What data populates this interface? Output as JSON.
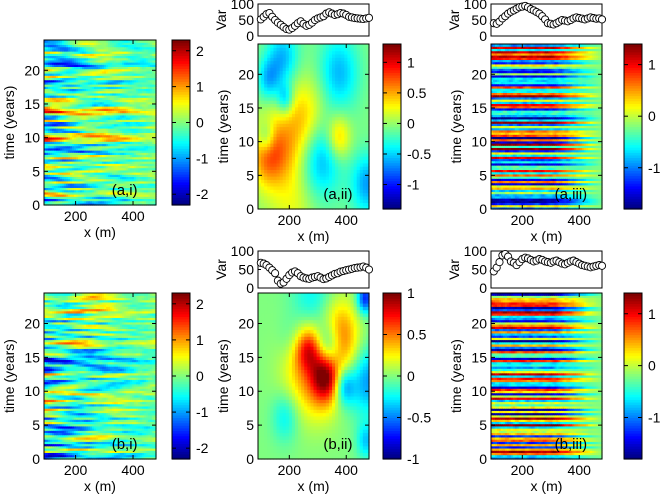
{
  "figure": {
    "description_panels": 6
  },
  "colors": {
    "axis": "#000000",
    "background": "#ffffff",
    "marker_edge": "#000000",
    "marker_fill": "#ffffff",
    "line": "#000000",
    "jet_stops": [
      "#00008f",
      "#0000ff",
      "#00ffff",
      "#80ff80",
      "#ffff00",
      "#ff0000",
      "#800000"
    ]
  },
  "chart_data": [
    {
      "id": "a_i",
      "type": "heatmap",
      "label": "(a,i)",
      "xlabel": "x (m)",
      "ylabel": "time (years)",
      "xlim": [
        90,
        480
      ],
      "ylim": [
        0,
        24.5
      ],
      "xticks": [
        200,
        400
      ],
      "yticks": [
        0,
        5,
        10,
        15,
        20
      ],
      "clim": [
        -2.3,
        2.3
      ],
      "colorbar_ticks": [
        -2,
        -1,
        0,
        1,
        2
      ],
      "pattern": "banded",
      "seed": 11,
      "var_strip": null
    },
    {
      "id": "a_ii",
      "type": "heatmap",
      "label": "(a,ii)",
      "xlabel": "x (m)",
      "ylabel": "time (years)",
      "xlim": [
        90,
        480
      ],
      "ylim": [
        0,
        24.5
      ],
      "xticks": [
        200,
        400
      ],
      "yticks": [
        0,
        5,
        10,
        15,
        20
      ],
      "clim": [
        -1.4,
        1.3
      ],
      "colorbar_ticks": [
        -1,
        -0.5,
        0,
        0.5,
        1
      ],
      "pattern": "smooth",
      "seed": 23,
      "var_strip": {
        "ylabel": "Var",
        "ylim": [
          0,
          100
        ],
        "yticks": [
          0,
          50,
          100
        ],
        "x": [
          100,
          110,
          120,
          130,
          140,
          150,
          160,
          170,
          180,
          190,
          200,
          210,
          220,
          230,
          240,
          250,
          260,
          270,
          280,
          290,
          300,
          310,
          320,
          330,
          340,
          350,
          360,
          370,
          380,
          390,
          400,
          410,
          420,
          430,
          440,
          450,
          460,
          470,
          480
        ],
        "values": [
          52,
          60,
          68,
          72,
          60,
          50,
          42,
          35,
          28,
          22,
          20,
          25,
          32,
          40,
          46,
          38,
          32,
          35,
          42,
          50,
          55,
          58,
          62,
          70,
          74,
          70,
          66,
          68,
          72,
          70,
          66,
          60,
          58,
          56,
          55,
          54,
          53,
          55,
          57
        ]
      }
    },
    {
      "id": "a_iii",
      "type": "heatmap",
      "label": "(a,iii)",
      "xlabel": "x (m)",
      "ylabel": "time (years)",
      "xlim": [
        90,
        480
      ],
      "ylim": [
        0,
        24.5
      ],
      "xticks": [
        200,
        400
      ],
      "yticks": [
        0,
        5,
        10,
        15,
        20
      ],
      "clim": [
        -1.8,
        1.4
      ],
      "colorbar_ticks": [
        -1,
        0,
        1
      ],
      "pattern": "stripes",
      "seed": 37,
      "var_strip": {
        "ylabel": "Var",
        "ylim": [
          0,
          100
        ],
        "yticks": [
          0,
          50,
          100
        ],
        "x": [
          100,
          110,
          120,
          130,
          140,
          150,
          160,
          170,
          180,
          190,
          200,
          210,
          220,
          230,
          240,
          250,
          260,
          270,
          280,
          290,
          300,
          310,
          320,
          330,
          340,
          350,
          360,
          370,
          380,
          390,
          400,
          410,
          420,
          430,
          440,
          450,
          460,
          470,
          480
        ],
        "values": [
          40,
          38,
          45,
          55,
          62,
          70,
          76,
          80,
          85,
          90,
          92,
          94,
          90,
          84,
          80,
          75,
          70,
          62,
          52,
          40,
          38,
          36,
          40,
          45,
          50,
          48,
          46,
          50,
          55,
          58,
          56,
          54,
          52,
          55,
          58,
          56,
          54,
          55,
          52
        ]
      }
    },
    {
      "id": "b_i",
      "type": "heatmap",
      "label": "(b,i)",
      "xlabel": "x (m)",
      "ylabel": "time (years)",
      "xlim": [
        90,
        480
      ],
      "ylim": [
        0,
        24.5
      ],
      "xticks": [
        200,
        400
      ],
      "yticks": [
        0,
        5,
        10,
        15,
        20
      ],
      "clim": [
        -2.3,
        2.3
      ],
      "colorbar_ticks": [
        -2,
        -1,
        0,
        1,
        2
      ],
      "pattern": "banded",
      "seed": 53,
      "var_strip": null
    },
    {
      "id": "b_ii",
      "type": "heatmap",
      "label": "(b,ii)",
      "xlabel": "x (m)",
      "ylabel": "time (years)",
      "xlim": [
        90,
        480
      ],
      "ylim": [
        0,
        24.5
      ],
      "xticks": [
        200,
        400
      ],
      "yticks": [
        0,
        5,
        10,
        15,
        20
      ],
      "clim": [
        -1.0,
        1.0
      ],
      "colorbar_ticks": [
        -1,
        -0.5,
        0,
        0.5,
        1
      ],
      "pattern": "smooth",
      "seed": 71,
      "var_strip": {
        "ylabel": "Var",
        "ylim": [
          0,
          100
        ],
        "yticks": [
          0,
          50,
          100
        ],
        "x": [
          100,
          110,
          120,
          130,
          140,
          150,
          160,
          170,
          180,
          190,
          200,
          210,
          220,
          230,
          240,
          250,
          260,
          270,
          280,
          290,
          300,
          310,
          320,
          330,
          340,
          350,
          360,
          370,
          380,
          390,
          400,
          410,
          420,
          430,
          440,
          450,
          460,
          470,
          480
        ],
        "values": [
          68,
          66,
          62,
          55,
          48,
          40,
          20,
          12,
          15,
          25,
          35,
          42,
          45,
          40,
          32,
          28,
          26,
          25,
          28,
          30,
          32,
          28,
          24,
          26,
          30,
          34,
          38,
          40,
          44,
          46,
          48,
          50,
          52,
          54,
          55,
          56,
          58,
          55,
          50
        ]
      }
    },
    {
      "id": "b_iii",
      "type": "heatmap",
      "label": "(b,iii)",
      "xlabel": "x (m)",
      "ylabel": "time (years)",
      "xlim": [
        90,
        480
      ],
      "ylim": [
        0,
        24.5
      ],
      "xticks": [
        200,
        400
      ],
      "yticks": [
        0,
        5,
        10,
        15,
        20
      ],
      "clim": [
        -1.8,
        1.4
      ],
      "colorbar_ticks": [
        -1,
        0,
        1
      ],
      "pattern": "stripes",
      "seed": 89,
      "var_strip": {
        "ylabel": "Var",
        "ylim": [
          0,
          100
        ],
        "yticks": [
          0,
          50,
          100
        ],
        "x": [
          100,
          110,
          120,
          130,
          140,
          150,
          160,
          170,
          180,
          190,
          200,
          210,
          220,
          230,
          240,
          250,
          260,
          270,
          280,
          290,
          300,
          310,
          320,
          330,
          340,
          350,
          360,
          370,
          380,
          390,
          400,
          410,
          420,
          430,
          440,
          450,
          460,
          470,
          480
        ],
        "values": [
          45,
          55,
          70,
          88,
          92,
          85,
          72,
          68,
          62,
          70,
          78,
          82,
          80,
          76,
          72,
          74,
          78,
          76,
          72,
          70,
          68,
          72,
          74,
          70,
          66,
          64,
          68,
          72,
          74,
          70,
          66,
          62,
          60,
          58,
          56,
          58,
          60,
          62,
          60
        ]
      }
    }
  ]
}
